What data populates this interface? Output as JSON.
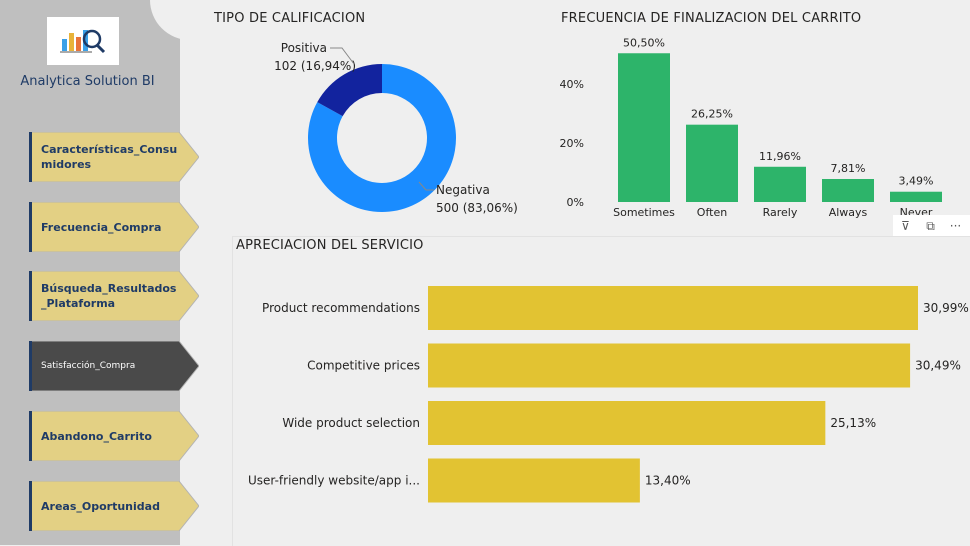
{
  "sidebar": {
    "brand": "Analytica Solution BI",
    "items": [
      {
        "label": "Características_Consumidores",
        "active": false
      },
      {
        "label": "Frecuencia_Compra",
        "active": false
      },
      {
        "label": "Búsqueda_Resultados_Plataforma",
        "active": false
      },
      {
        "label": "Satisfacción_Compra",
        "active": true
      },
      {
        "label": "Abandono_Carrito",
        "active": false
      },
      {
        "label": "Areas_Oportunidad",
        "active": false
      }
    ]
  },
  "colors": {
    "nav_bg": "#e3d084",
    "nav_active_bg": "#4a4a4a",
    "nav_accent": "#1f3b66",
    "donut_negative": "#1a8cff",
    "donut_positive": "#12239e",
    "green_bar": "#2db46a",
    "yellow_bar": "#e2c332"
  },
  "visual_tools": [
    "filter-icon",
    "focus-mode-icon",
    "more-options-icon"
  ],
  "visual_tools_glyphs": [
    "⊽",
    "⧉",
    "···"
  ],
  "chart_data": [
    {
      "type": "pie",
      "title": "TIPO DE CALIFICACION",
      "donut": true,
      "slices": [
        {
          "name": "Negativa",
          "value": 500,
          "percent_label": "500 (83,06%)"
        },
        {
          "name": "Positiva",
          "value": 102,
          "percent_label": "102 (16,94%)"
        }
      ]
    },
    {
      "type": "bar",
      "title": "FRECUENCIA DE FINALIZACION DEL CARRITO",
      "categories": [
        "Sometimes",
        "Often",
        "Rarely",
        "Always",
        "Never"
      ],
      "values": [
        50.5,
        26.25,
        11.96,
        7.81,
        3.49
      ],
      "data_labels": [
        "50,50%",
        "26,25%",
        "11,96%",
        "7,81%",
        "3,49%"
      ],
      "yticks": [
        "0%",
        "20%",
        "40%"
      ],
      "ytick_values": [
        0,
        20,
        40
      ],
      "ylim": [
        0,
        55
      ]
    },
    {
      "type": "bar",
      "orientation": "horizontal",
      "title": "APRECIACION DEL SERVICIO",
      "categories": [
        "Product recommendations",
        "Competitive prices",
        "Wide product selection",
        "User-friendly website/app i..."
      ],
      "values": [
        30.99,
        30.49,
        25.13,
        13.4
      ],
      "data_labels": [
        "30,99%",
        "30,49%",
        "25,13%",
        "13,40%"
      ],
      "xlim": [
        0,
        30.99
      ]
    }
  ]
}
